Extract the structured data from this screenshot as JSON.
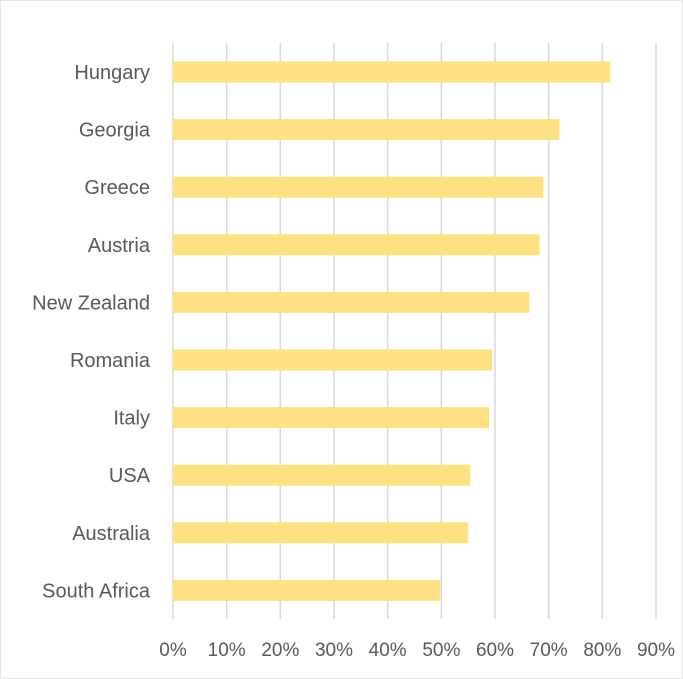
{
  "chart_data": {
    "type": "bar",
    "orientation": "horizontal",
    "title": "",
    "xlabel": "",
    "ylabel": "",
    "categories": [
      "Hungary",
      "Georgia",
      "Greece",
      "Austria",
      "New Zealand",
      "Romania",
      "Italy",
      "USA",
      "Australia",
      "South Africa"
    ],
    "values": [
      81.5,
      72,
      69,
      68.3,
      66.4,
      59.5,
      58.9,
      55.4,
      55,
      49.8
    ],
    "xlim": [
      0,
      90
    ],
    "x_ticks": [
      "0%",
      "10%",
      "20%",
      "30%",
      "40%",
      "50%",
      "60%",
      "70%",
      "80%",
      "90%"
    ],
    "grid": "vertical",
    "legend": "none",
    "bar_color": "#FFE082",
    "grid_color": "#D9D9D9",
    "text_color": "#595959"
  }
}
